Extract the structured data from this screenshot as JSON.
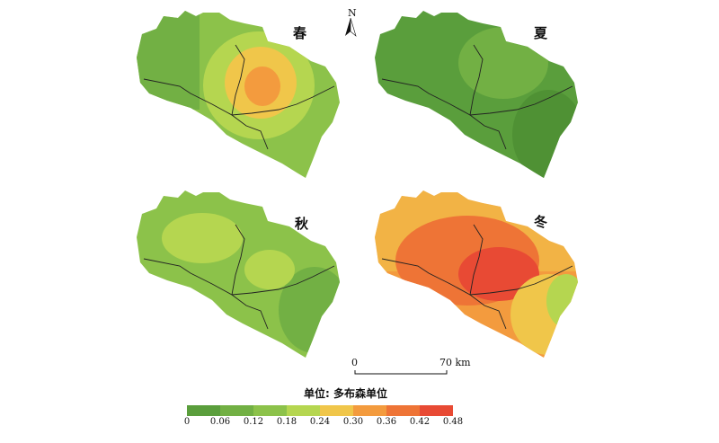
{
  "north": {
    "label": "N"
  },
  "seasons": [
    {
      "label": "春",
      "key": "spring"
    },
    {
      "label": "夏",
      "key": "summer"
    },
    {
      "label": "秋",
      "key": "autumn"
    },
    {
      "label": "冬",
      "key": "winter"
    }
  ],
  "scale_bar": {
    "start_label": "0",
    "end_label": "70 km"
  },
  "legend": {
    "title": "单位: 多布森单位",
    "ticks": [
      "0",
      "0.06",
      "0.12",
      "0.18",
      "0.24",
      "0.30",
      "0.36",
      "0.42",
      "0.48"
    ],
    "colors": [
      "#5a9e3c",
      "#72b044",
      "#8cc24a",
      "#b5d650",
      "#f0c64a",
      "#f39b3e",
      "#ee7436",
      "#e84a34"
    ]
  },
  "map_colors": {
    "spring": {
      "base": "#8cc24a",
      "mid": "#b5d650",
      "high": "#f0c64a",
      "peak": "#f39b3e",
      "low": "#72b044"
    },
    "summer": {
      "base": "#5a9e3c",
      "mid": "#72b044",
      "low": "#4f9134"
    },
    "autumn": {
      "base": "#8cc24a",
      "mid": "#b5d650",
      "low": "#72b044"
    },
    "winter": {
      "base": "#f39b3e",
      "mid": "#ee7436",
      "high": "#e84a34",
      "edge": "#f0c64a",
      "low": "#b5d650"
    }
  }
}
